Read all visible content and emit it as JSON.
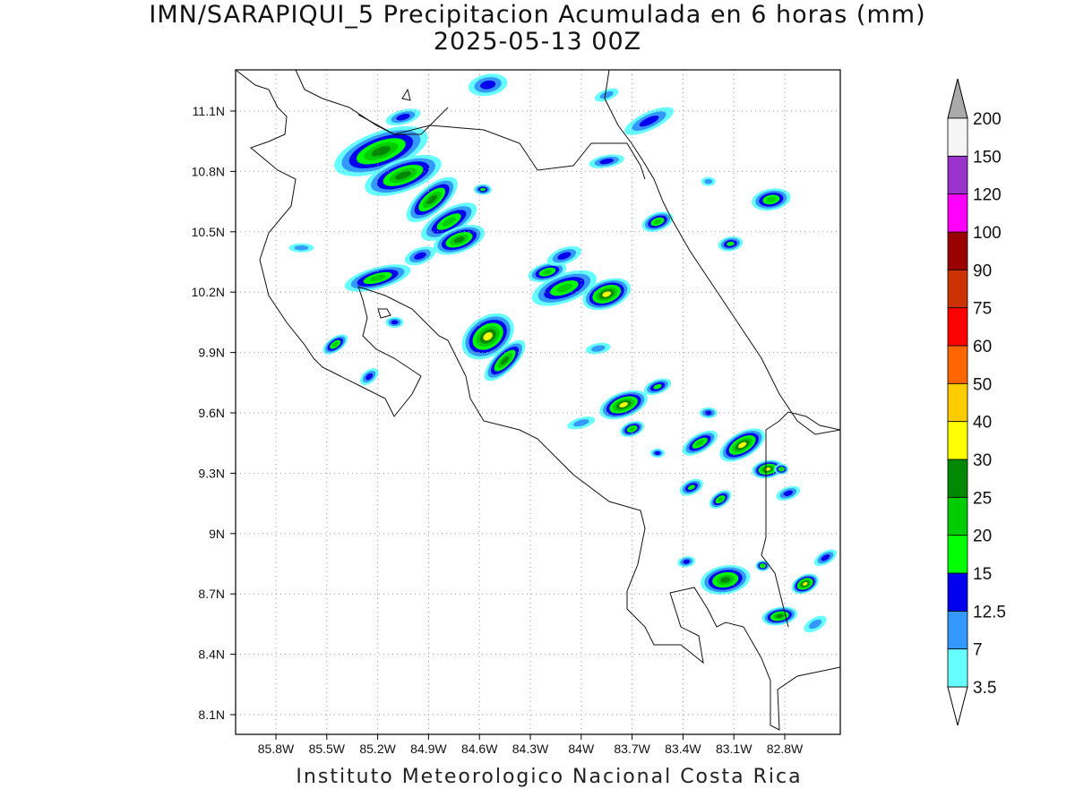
{
  "title": {
    "line1": "IMN/SARAPIQUI_5 Precipitacion Acumulada en 6 horas (mm)",
    "line2": "2025-05-13 00Z"
  },
  "footer": "Instituto Meteorologico Nacional Costa Rica",
  "map": {
    "lon_labels": [
      "85.8W",
      "85.5W",
      "85.2W",
      "84.9W",
      "84.6W",
      "84.3W",
      "84W",
      "83.7W",
      "83.4W",
      "83.1W",
      "82.8W"
    ],
    "lat_labels": [
      "11.1N",
      "10.8N",
      "10.5N",
      "10.2N",
      "9.9N",
      "9.6N",
      "9.3N",
      "9N",
      "8.7N",
      "8.4N",
      "8.1N"
    ],
    "grid": "dotted"
  },
  "legend": {
    "levels": [
      "3.5",
      "7",
      "12.5",
      "15",
      "20",
      "25",
      "30",
      "40",
      "50",
      "60",
      "75",
      "90",
      "100",
      "120",
      "150",
      "200"
    ],
    "colors": [
      "#66ffff",
      "#3399ff",
      "#0000ee",
      "#00ff00",
      "#00cc00",
      "#008800",
      "#ffff00",
      "#ffcc00",
      "#ff6600",
      "#ff0000",
      "#cc3300",
      "#990000",
      "#ff00ff",
      "#9933cc",
      "#f5f5f5",
      "#aaaaaa"
    ]
  },
  "cells": [
    {
      "lon": -85.18,
      "lat": 10.9,
      "rot": -20,
      "a": 55,
      "b": 22,
      "level": 5
    },
    {
      "lon": -85.05,
      "lat": 10.78,
      "rot": -20,
      "a": 45,
      "b": 18,
      "level": 5
    },
    {
      "lon": -84.88,
      "lat": 10.66,
      "rot": -40,
      "a": 35,
      "b": 15,
      "level": 5
    },
    {
      "lon": -84.78,
      "lat": 10.55,
      "rot": -30,
      "a": 35,
      "b": 14,
      "level": 4
    },
    {
      "lon": -84.72,
      "lat": 10.46,
      "rot": -20,
      "a": 30,
      "b": 14,
      "level": 5
    },
    {
      "lon": -85.2,
      "lat": 10.27,
      "rot": -15,
      "a": 38,
      "b": 12,
      "level": 4
    },
    {
      "lon": -84.55,
      "lat": 9.98,
      "rot": -35,
      "a": 32,
      "b": 22,
      "level": 6
    },
    {
      "lon": -84.45,
      "lat": 9.86,
      "rot": -45,
      "a": 30,
      "b": 12,
      "level": 5
    },
    {
      "lon": -84.1,
      "lat": 10.22,
      "rot": -20,
      "a": 38,
      "b": 16,
      "level": 4
    },
    {
      "lon": -83.85,
      "lat": 10.19,
      "rot": -20,
      "a": 28,
      "b": 16,
      "level": 6
    },
    {
      "lon": -84.2,
      "lat": 10.3,
      "rot": -15,
      "a": 22,
      "b": 10,
      "level": 4
    },
    {
      "lon": -83.75,
      "lat": 9.64,
      "rot": -20,
      "a": 28,
      "b": 14,
      "level": 6
    },
    {
      "lon": -83.05,
      "lat": 9.44,
      "rot": -30,
      "a": 28,
      "b": 14,
      "level": 6
    },
    {
      "lon": -82.9,
      "lat": 9.32,
      "rot": -10,
      "a": 18,
      "b": 10,
      "level": 6
    },
    {
      "lon": -83.3,
      "lat": 9.45,
      "rot": -30,
      "a": 22,
      "b": 10,
      "level": 4
    },
    {
      "lon": -83.15,
      "lat": 8.77,
      "rot": -10,
      "a": 28,
      "b": 16,
      "level": 5
    },
    {
      "lon": -82.83,
      "lat": 8.59,
      "rot": -10,
      "a": 20,
      "b": 10,
      "level": 5
    },
    {
      "lon": -82.68,
      "lat": 8.75,
      "rot": -25,
      "a": 16,
      "b": 10,
      "level": 6
    },
    {
      "lon": -85.45,
      "lat": 9.94,
      "rot": -35,
      "a": 16,
      "b": 8,
      "level": 4
    },
    {
      "lon": -84.58,
      "lat": 10.71,
      "rot": 0,
      "a": 10,
      "b": 6,
      "level": 3
    },
    {
      "lon": -83.55,
      "lat": 10.55,
      "rot": -20,
      "a": 18,
      "b": 10,
      "level": 4
    },
    {
      "lon": -82.88,
      "lat": 10.66,
      "rot": -10,
      "a": 22,
      "b": 12,
      "level": 4
    },
    {
      "lon": -83.12,
      "lat": 10.44,
      "rot": -10,
      "a": 14,
      "b": 8,
      "level": 3
    },
    {
      "lon": -83.7,
      "lat": 9.52,
      "rot": -20,
      "a": 14,
      "b": 8,
      "level": 4
    },
    {
      "lon": -83.55,
      "lat": 9.73,
      "rot": -20,
      "a": 16,
      "b": 8,
      "level": 3
    },
    {
      "lon": -83.35,
      "lat": 9.23,
      "rot": -25,
      "a": 14,
      "b": 8,
      "level": 3
    },
    {
      "lon": -83.18,
      "lat": 9.17,
      "rot": -35,
      "a": 14,
      "b": 8,
      "level": 4
    },
    {
      "lon": -82.93,
      "lat": 8.84,
      "rot": 0,
      "a": 8,
      "b": 6,
      "level": 4
    },
    {
      "lon": -82.82,
      "lat": 9.32,
      "rot": 0,
      "a": 8,
      "b": 6,
      "level": 4
    },
    {
      "lon": -84.55,
      "lat": 11.23,
      "rot": -10,
      "a": 22,
      "b": 12,
      "level": 2
    },
    {
      "lon": -85.05,
      "lat": 11.07,
      "rot": -15,
      "a": 20,
      "b": 8,
      "level": 2
    },
    {
      "lon": -83.6,
      "lat": 11.05,
      "rot": -25,
      "a": 30,
      "b": 10,
      "level": 2
    },
    {
      "lon": -83.85,
      "lat": 10.85,
      "rot": -10,
      "a": 20,
      "b": 7,
      "level": 2
    },
    {
      "lon": -84.95,
      "lat": 10.38,
      "rot": -20,
      "a": 18,
      "b": 9,
      "level": 2
    },
    {
      "lon": -84.1,
      "lat": 10.38,
      "rot": -20,
      "a": 20,
      "b": 9,
      "level": 2
    },
    {
      "lon": -83.9,
      "lat": 9.92,
      "rot": -10,
      "a": 14,
      "b": 6,
      "level": 1
    },
    {
      "lon": -83.25,
      "lat": 9.6,
      "rot": 0,
      "a": 10,
      "b": 6,
      "level": 2
    },
    {
      "lon": -85.1,
      "lat": 10.05,
      "rot": 0,
      "a": 10,
      "b": 6,
      "level": 2
    },
    {
      "lon": -85.25,
      "lat": 9.78,
      "rot": -40,
      "a": 12,
      "b": 7,
      "level": 2
    },
    {
      "lon": -83.38,
      "lat": 8.86,
      "rot": -10,
      "a": 10,
      "b": 6,
      "level": 2
    },
    {
      "lon": -82.56,
      "lat": 8.88,
      "rot": -30,
      "a": 14,
      "b": 7,
      "level": 2
    },
    {
      "lon": -82.78,
      "lat": 9.2,
      "rot": -20,
      "a": 14,
      "b": 7,
      "level": 2
    },
    {
      "lon": -82.62,
      "lat": 8.55,
      "rot": -30,
      "a": 14,
      "b": 7,
      "level": 1
    },
    {
      "lon": -83.25,
      "lat": 10.75,
      "rot": 0,
      "a": 8,
      "b": 5,
      "level": 1
    },
    {
      "lon": -84.0,
      "lat": 9.55,
      "rot": -15,
      "a": 16,
      "b": 6,
      "level": 1
    },
    {
      "lon": -83.85,
      "lat": 11.18,
      "rot": -20,
      "a": 14,
      "b": 6,
      "level": 1
    },
    {
      "lon": -85.65,
      "lat": 10.42,
      "rot": 0,
      "a": 14,
      "b": 5,
      "level": 1
    },
    {
      "lon": -83.55,
      "lat": 9.4,
      "rot": 0,
      "a": 8,
      "b": 5,
      "level": 2
    }
  ]
}
